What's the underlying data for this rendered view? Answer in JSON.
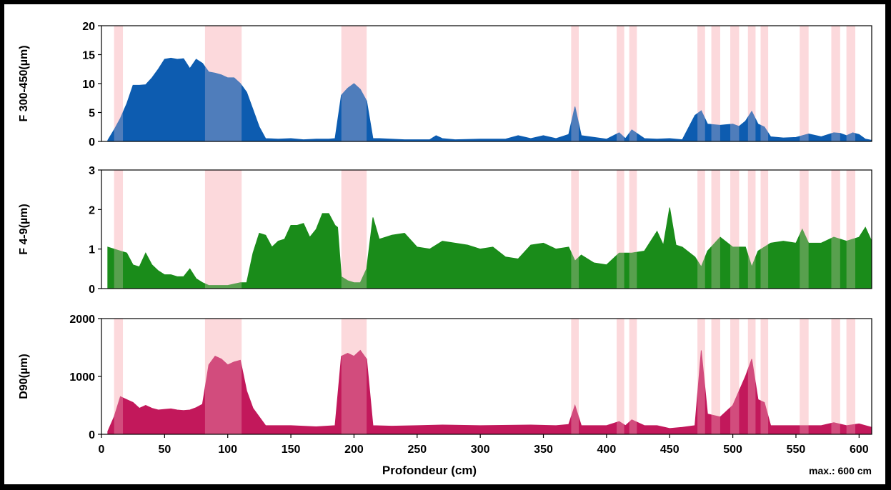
{
  "chart_data": {
    "type": "area",
    "xlabel": "Profondeur (cm)",
    "note": "max.: 600 cm",
    "xlim": [
      0,
      610
    ],
    "x_ticks": [
      0,
      50,
      100,
      150,
      200,
      250,
      300,
      350,
      400,
      450,
      500,
      550,
      600
    ],
    "highlight_bands": [
      [
        10,
        17
      ],
      [
        82,
        111
      ],
      [
        190,
        210
      ],
      [
        372,
        378
      ],
      [
        408,
        414
      ],
      [
        418,
        424
      ],
      [
        472,
        478
      ],
      [
        483,
        490
      ],
      [
        498,
        505
      ],
      [
        512,
        518
      ],
      [
        522,
        528
      ],
      [
        553,
        560
      ],
      [
        578,
        585
      ],
      [
        590,
        597
      ]
    ],
    "highlight_color": "#fbd5d8",
    "panels": [
      {
        "id": "f300",
        "ylabel": "F 300-450(µm)",
        "ylim": [
          0,
          20
        ],
        "y_ticks": [
          0,
          5,
          10,
          15,
          20
        ],
        "color": "#0d5cb0",
        "x": [
          5,
          10,
          15,
          20,
          25,
          30,
          35,
          40,
          45,
          50,
          55,
          60,
          65,
          70,
          75,
          80,
          85,
          90,
          95,
          100,
          105,
          110,
          115,
          120,
          125,
          130,
          140,
          150,
          160,
          170,
          180,
          185,
          190,
          195,
          200,
          205,
          210,
          215,
          220,
          240,
          260,
          265,
          270,
          280,
          300,
          320,
          330,
          340,
          350,
          360,
          370,
          375,
          380,
          400,
          410,
          415,
          420,
          430,
          440,
          450,
          460,
          470,
          475,
          480,
          490,
          500,
          505,
          510,
          515,
          520,
          525,
          530,
          540,
          550,
          560,
          570,
          580,
          585,
          590,
          595,
          600,
          605,
          610
        ],
        "values": [
          0.2,
          2,
          4,
          6.5,
          9.7,
          9.7,
          9.8,
          11,
          12.5,
          14.2,
          14.4,
          14.2,
          14.3,
          12.6,
          14.2,
          13.5,
          12,
          11.8,
          11.5,
          11,
          11,
          10,
          8.5,
          5.5,
          2.5,
          0.5,
          0.4,
          0.5,
          0.3,
          0.4,
          0.4,
          0.5,
          8,
          9.2,
          10,
          9,
          7,
          0.5,
          0.5,
          0.3,
          0.3,
          1,
          0.5,
          0.3,
          0.4,
          0.4,
          1,
          0.5,
          1,
          0.5,
          1.2,
          6,
          1,
          0.4,
          1.5,
          0.5,
          2,
          0.5,
          0.4,
          0.5,
          0.3,
          4.5,
          5.3,
          3,
          2.8,
          3,
          2.6,
          3.5,
          5.2,
          3,
          2.5,
          0.8,
          0.6,
          0.7,
          1.3,
          0.8,
          1.5,
          1.4,
          1,
          1.5,
          1.2,
          0.4,
          0.2
        ]
      },
      {
        "id": "f49",
        "ylabel": "F 4-9(µm)",
        "ylim": [
          0,
          3
        ],
        "y_ticks": [
          0,
          1,
          2,
          3
        ],
        "color": "#1a8c1a",
        "x": [
          5,
          10,
          15,
          20,
          25,
          30,
          35,
          40,
          45,
          50,
          55,
          60,
          65,
          70,
          75,
          80,
          85,
          90,
          100,
          110,
          115,
          120,
          125,
          130,
          135,
          140,
          145,
          150,
          155,
          160,
          165,
          170,
          175,
          180,
          185,
          187,
          190,
          195,
          200,
          205,
          210,
          215,
          220,
          225,
          230,
          240,
          250,
          260,
          270,
          280,
          290,
          300,
          310,
          320,
          330,
          340,
          350,
          360,
          370,
          375,
          380,
          390,
          400,
          410,
          420,
          430,
          440,
          445,
          450,
          455,
          460,
          470,
          475,
          480,
          490,
          500,
          510,
          515,
          520,
          530,
          540,
          550,
          555,
          560,
          570,
          580,
          590,
          600,
          605,
          610
        ],
        "values": [
          1.05,
          1,
          0.95,
          0.9,
          0.6,
          0.55,
          0.9,
          0.6,
          0.45,
          0.35,
          0.35,
          0.3,
          0.3,
          0.5,
          0.25,
          0.15,
          0.08,
          0.08,
          0.08,
          0.15,
          0.15,
          0.9,
          1.4,
          1.35,
          1.05,
          1.2,
          1.25,
          1.6,
          1.6,
          1.65,
          1.3,
          1.5,
          1.9,
          1.9,
          1.6,
          1.55,
          0.3,
          0.2,
          0.15,
          0.15,
          0.5,
          1.8,
          1.25,
          1.3,
          1.35,
          1.4,
          1.05,
          1.0,
          1.2,
          1.15,
          1.1,
          1.0,
          1.05,
          0.8,
          0.75,
          1.1,
          1.15,
          1.0,
          1.05,
          0.7,
          0.85,
          0.65,
          0.6,
          0.9,
          0.9,
          0.95,
          1.45,
          1.1,
          2.05,
          1.1,
          1.05,
          0.8,
          0.55,
          0.95,
          1.3,
          1.05,
          1.05,
          0.55,
          0.95,
          1.15,
          1.2,
          1.15,
          1.5,
          1.15,
          1.15,
          1.3,
          1.2,
          1.3,
          1.55,
          1.2
        ]
      },
      {
        "id": "d90",
        "ylabel": "D90(µm)",
        "ylim": [
          0,
          2000
        ],
        "y_ticks": [
          0,
          1000,
          2000
        ],
        "color": "#c2185b",
        "x": [
          5,
          10,
          15,
          20,
          25,
          30,
          35,
          40,
          45,
          50,
          55,
          60,
          65,
          70,
          75,
          80,
          85,
          90,
          95,
          100,
          105,
          110,
          115,
          120,
          125,
          130,
          150,
          170,
          185,
          190,
          195,
          200,
          205,
          210,
          215,
          230,
          250,
          270,
          300,
          340,
          360,
          370,
          375,
          380,
          400,
          410,
          415,
          420,
          430,
          440,
          450,
          460,
          470,
          475,
          480,
          490,
          500,
          510,
          515,
          520,
          525,
          530,
          550,
          570,
          580,
          590,
          600,
          605,
          610
        ],
        "values": [
          50,
          300,
          650,
          600,
          550,
          450,
          500,
          450,
          420,
          430,
          440,
          420,
          410,
          420,
          460,
          520,
          1200,
          1350,
          1300,
          1200,
          1250,
          1280,
          750,
          450,
          300,
          150,
          150,
          130,
          150,
          1350,
          1400,
          1350,
          1450,
          1300,
          150,
          140,
          150,
          160,
          150,
          160,
          150,
          170,
          500,
          150,
          150,
          220,
          150,
          250,
          150,
          150,
          100,
          120,
          150,
          1450,
          350,
          300,
          500,
          1000,
          1300,
          600,
          550,
          150,
          150,
          150,
          200,
          150,
          180,
          150,
          120
        ]
      }
    ]
  }
}
